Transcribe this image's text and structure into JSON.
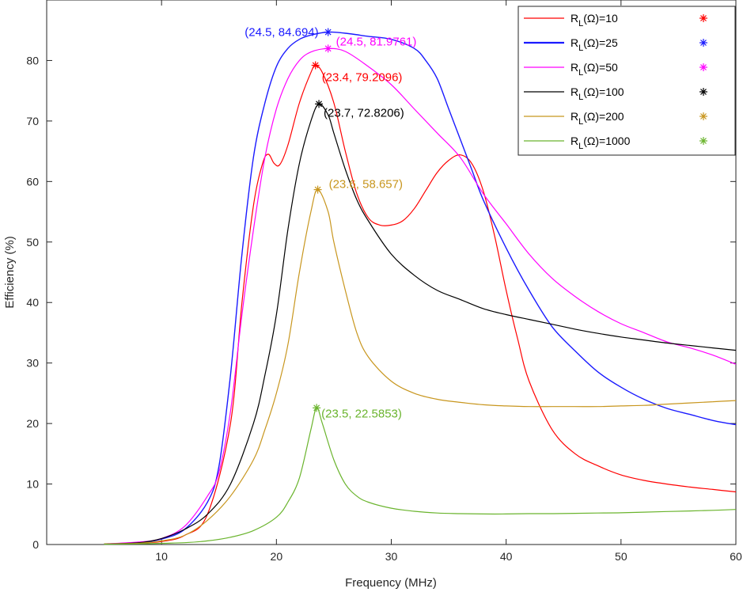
{
  "chart_data": {
    "type": "line",
    "xlabel": "Frequency (MHz)",
    "ylabel": "Efficiency (%)",
    "xlim": [
      0,
      60
    ],
    "ylim": [
      0,
      90
    ],
    "xticks": [
      10,
      20,
      30,
      40,
      50,
      60
    ],
    "yticks": [
      0,
      10,
      20,
      30,
      40,
      50,
      60,
      70,
      80
    ],
    "grid": false,
    "legend_position": "top-right",
    "series": [
      {
        "name": "R_L(Ω)=10",
        "name_main": "R",
        "name_sub": "L",
        "name_rest": "(Ω)=10",
        "color": "#ff0000",
        "points": [
          [
            5,
            0.1
          ],
          [
            8,
            0.2
          ],
          [
            10,
            0.5
          ],
          [
            12,
            1.5
          ],
          [
            14,
            5
          ],
          [
            16,
            20
          ],
          [
            17,
            40
          ],
          [
            18,
            56
          ],
          [
            18.8,
            63
          ],
          [
            19.3,
            64.5
          ],
          [
            19.8,
            63
          ],
          [
            20.3,
            62.8
          ],
          [
            21,
            66
          ],
          [
            22,
            73
          ],
          [
            23,
            78
          ],
          [
            23.4,
            79.2
          ],
          [
            24,
            78
          ],
          [
            25,
            73
          ],
          [
            26,
            65
          ],
          [
            27,
            58
          ],
          [
            28,
            54
          ],
          [
            29,
            52.8
          ],
          [
            30,
            52.8
          ],
          [
            31,
            53.5
          ],
          [
            32,
            55.5
          ],
          [
            33,
            58.5
          ],
          [
            34,
            61.5
          ],
          [
            35,
            63.5
          ],
          [
            36,
            64.4
          ],
          [
            37,
            63
          ],
          [
            38,
            58.5
          ],
          [
            39,
            51
          ],
          [
            40,
            42
          ],
          [
            41,
            34
          ],
          [
            42,
            27
          ],
          [
            44,
            19
          ],
          [
            46,
            15
          ],
          [
            48,
            13
          ],
          [
            50,
            11.5
          ],
          [
            52,
            10.6
          ],
          [
            54,
            10
          ],
          [
            56,
            9.5
          ],
          [
            58,
            9.1
          ],
          [
            60,
            8.7
          ]
        ],
        "peak": {
          "x": 23.4,
          "y": 79.2096,
          "label": "(23.4, 79.2096)"
        }
      },
      {
        "name": "R_L(Ω)=25",
        "name_main": "R",
        "name_sub": "L",
        "name_rest": "(Ω)=25",
        "color": "#1a1aff",
        "points": [
          [
            5,
            0.1
          ],
          [
            8,
            0.3
          ],
          [
            10,
            0.9
          ],
          [
            12,
            2.5
          ],
          [
            14,
            7
          ],
          [
            15,
            13
          ],
          [
            16,
            28
          ],
          [
            17,
            48
          ],
          [
            18,
            64
          ],
          [
            19,
            73
          ],
          [
            20,
            79
          ],
          [
            21,
            82
          ],
          [
            22,
            83.5
          ],
          [
            23,
            84.2
          ],
          [
            24.5,
            84.7
          ],
          [
            26,
            84.5
          ],
          [
            28,
            84
          ],
          [
            30,
            83.5
          ],
          [
            32,
            82
          ],
          [
            33,
            80
          ],
          [
            34,
            77
          ],
          [
            35,
            72
          ],
          [
            36,
            67
          ],
          [
            37,
            62
          ],
          [
            38,
            57
          ],
          [
            40,
            49
          ],
          [
            42,
            42
          ],
          [
            44,
            36
          ],
          [
            46,
            32
          ],
          [
            48,
            28.5
          ],
          [
            50,
            26
          ],
          [
            52,
            24
          ],
          [
            54,
            22.5
          ],
          [
            56,
            21.5
          ],
          [
            58,
            20.5
          ],
          [
            60,
            19.8
          ]
        ],
        "peak": {
          "x": 24.5,
          "y": 84.694,
          "label": "(24.5, 84.694)"
        }
      },
      {
        "name": "R_L(Ω)=50",
        "name_main": "R",
        "name_sub": "L",
        "name_rest": "(Ω)=50",
        "color": "#ff00ff",
        "points": [
          [
            5,
            0.1
          ],
          [
            8,
            0.4
          ],
          [
            10,
            1
          ],
          [
            12,
            3
          ],
          [
            14,
            8
          ],
          [
            15,
            12
          ],
          [
            16,
            22
          ],
          [
            17,
            38
          ],
          [
            18,
            52
          ],
          [
            19,
            64
          ],
          [
            20,
            72
          ],
          [
            21,
            77
          ],
          [
            22,
            80
          ],
          [
            23,
            81.4
          ],
          [
            24.5,
            81.98
          ],
          [
            26,
            81.5
          ],
          [
            28,
            79
          ],
          [
            30,
            76
          ],
          [
            32,
            72
          ],
          [
            34,
            68
          ],
          [
            36,
            64
          ],
          [
            38,
            58
          ],
          [
            40,
            53
          ],
          [
            42,
            48
          ],
          [
            44,
            44
          ],
          [
            46,
            41
          ],
          [
            48,
            38.5
          ],
          [
            50,
            36.5
          ],
          [
            52,
            35
          ],
          [
            54,
            33.5
          ],
          [
            56,
            32.5
          ],
          [
            58,
            31.3
          ],
          [
            60,
            29.8
          ]
        ],
        "peak": {
          "x": 24.5,
          "y": 81.9761,
          "label": "(24.5, 81.9761)"
        }
      },
      {
        "name": "R_L(Ω)=100",
        "name_main": "R",
        "name_sub": "L",
        "name_rest": "(Ω)=100",
        "color": "#000000",
        "points": [
          [
            5,
            0.1
          ],
          [
            8,
            0.3
          ],
          [
            10,
            1
          ],
          [
            12,
            2.5
          ],
          [
            14,
            5
          ],
          [
            16,
            10
          ],
          [
            18,
            20
          ],
          [
            19,
            28
          ],
          [
            20,
            38
          ],
          [
            21,
            52
          ],
          [
            22,
            63
          ],
          [
            23,
            70
          ],
          [
            23.7,
            72.8
          ],
          [
            24.5,
            71
          ],
          [
            25,
            68
          ],
          [
            26,
            62
          ],
          [
            27,
            57
          ],
          [
            28,
            53.5
          ],
          [
            30,
            48
          ],
          [
            32,
            44.5
          ],
          [
            34,
            42
          ],
          [
            36,
            40.5
          ],
          [
            38,
            39
          ],
          [
            40,
            38
          ],
          [
            42,
            37.2
          ],
          [
            44,
            36.4
          ],
          [
            46,
            35.6
          ],
          [
            48,
            34.9
          ],
          [
            50,
            34.3
          ],
          [
            52,
            33.8
          ],
          [
            54,
            33.3
          ],
          [
            56,
            32.9
          ],
          [
            58,
            32.5
          ],
          [
            60,
            32.1
          ]
        ],
        "peak": {
          "x": 23.7,
          "y": 72.8206,
          "label": "(23.7, 72.8206)"
        }
      },
      {
        "name": "R_L(Ω)=200",
        "name_main": "R",
        "name_sub": "L",
        "name_rest": "(Ω)=200",
        "color": "#c8961e",
        "points": [
          [
            5,
            0.1
          ],
          [
            8,
            0.2
          ],
          [
            10,
            0.6
          ],
          [
            12,
            1.5
          ],
          [
            14,
            4
          ],
          [
            16,
            8
          ],
          [
            18,
            14
          ],
          [
            19,
            19
          ],
          [
            20,
            25
          ],
          [
            21,
            33
          ],
          [
            22,
            45
          ],
          [
            23,
            55
          ],
          [
            23.6,
            58.66
          ],
          [
            24.5,
            55
          ],
          [
            25,
            50
          ],
          [
            26,
            42
          ],
          [
            27,
            35
          ],
          [
            28,
            31
          ],
          [
            30,
            27
          ],
          [
            32,
            25
          ],
          [
            34,
            24
          ],
          [
            36,
            23.5
          ],
          [
            38,
            23.1
          ],
          [
            40,
            22.9
          ],
          [
            42,
            22.8
          ],
          [
            44,
            22.8
          ],
          [
            46,
            22.8
          ],
          [
            48,
            22.8
          ],
          [
            50,
            22.9
          ],
          [
            52,
            23
          ],
          [
            54,
            23.2
          ],
          [
            56,
            23.4
          ],
          [
            58,
            23.6
          ],
          [
            60,
            23.8
          ]
        ],
        "peak": {
          "x": 23.6,
          "y": 58.657,
          "label": "(23.6, 58.657)"
        }
      },
      {
        "name": "R_L(Ω)=1000",
        "name_main": "R",
        "name_sub": "L",
        "name_rest": "(Ω)=1000",
        "color": "#6ab42d",
        "points": [
          [
            5,
            0.05
          ],
          [
            8,
            0.1
          ],
          [
            10,
            0.2
          ],
          [
            12,
            0.3
          ],
          [
            14,
            0.6
          ],
          [
            16,
            1.2
          ],
          [
            18,
            2.3
          ],
          [
            20,
            4.5
          ],
          [
            21,
            7
          ],
          [
            22,
            11
          ],
          [
            23,
            19
          ],
          [
            23.5,
            22.59
          ],
          [
            24,
            20
          ],
          [
            25,
            14
          ],
          [
            26,
            10
          ],
          [
            27,
            8
          ],
          [
            28,
            7
          ],
          [
            30,
            6
          ],
          [
            32,
            5.5
          ],
          [
            34,
            5.2
          ],
          [
            36,
            5.1
          ],
          [
            38,
            5.05
          ],
          [
            40,
            5.05
          ],
          [
            42,
            5.1
          ],
          [
            44,
            5.1
          ],
          [
            46,
            5.15
          ],
          [
            48,
            5.2
          ],
          [
            50,
            5.25
          ],
          [
            52,
            5.35
          ],
          [
            54,
            5.45
          ],
          [
            56,
            5.55
          ],
          [
            58,
            5.65
          ],
          [
            60,
            5.8
          ]
        ],
        "peak": {
          "x": 23.5,
          "y": 22.5853,
          "label": "(23.5, 22.5853)"
        }
      }
    ]
  }
}
